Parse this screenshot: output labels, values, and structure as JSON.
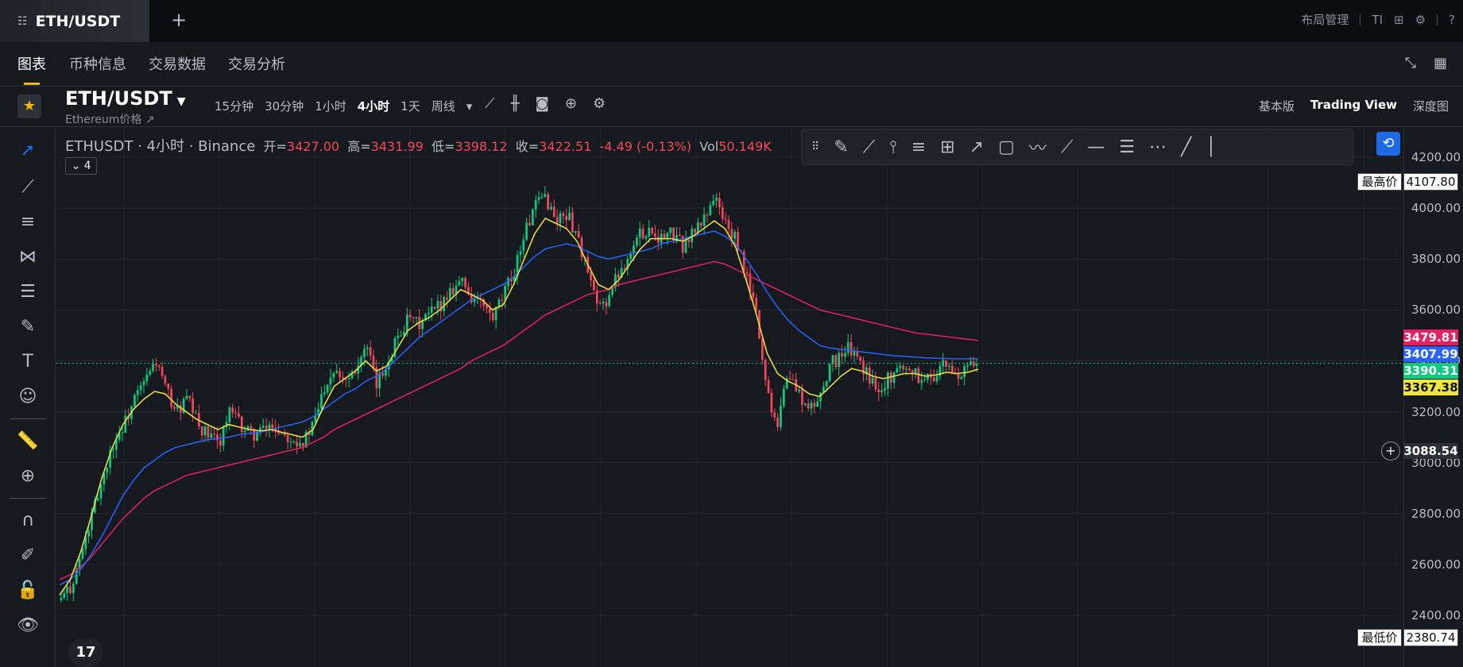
{
  "tab": {
    "icon": "list-icon",
    "title": "ETH/USDT"
  },
  "top_right": {
    "layout_label": "布局管理"
  },
  "subtabs": [
    "图表",
    "币种信息",
    "交易数据",
    "交易分析"
  ],
  "symbol": {
    "name": "ETH/USDT",
    "link": "Ethereum价格 ↗"
  },
  "intervals": [
    "15分钟",
    "30分钟",
    "1小时",
    "4小时",
    "1天",
    "周线"
  ],
  "active_interval": "4小时",
  "views": [
    "基本版",
    "Trading View",
    "深度图"
  ],
  "active_view": "Trading View",
  "legend": {
    "title": "ETHUSDT · 4小时 · Binance",
    "open_label": "开=",
    "open": "3427.00",
    "high_label": "高=",
    "high": "3431.99",
    "low_label": "低=",
    "low": "3398.12",
    "close_label": "收=",
    "close": "3422.51",
    "change": "-4.49 (-0.13%)",
    "vol_label": "Vol",
    "vol": "50.149K"
  },
  "indicator_toggle": "⌄ 4",
  "price_tags": {
    "ma_red": "3479.81",
    "ma_blue": "3407.99",
    "last": "3390.31",
    "ma_yellow": "3367.38",
    "crosshair": "3088.54"
  },
  "highest": {
    "label": "最高价",
    "value": "4107.80"
  },
  "lowest": {
    "label": "最低价",
    "value": "2380.74"
  },
  "colors": {
    "up": "#0ecb81",
    "down": "#f6465d",
    "ma_yellow": "#f0e442",
    "ma_blue": "#2962ff",
    "ma_red": "#e91e63",
    "accent": "#f0b90b"
  },
  "chart_data": {
    "type": "candlestick",
    "ylim": [
      2380,
      4250
    ],
    "y_ticks": [
      "4200.00",
      "4000.00",
      "3800.00",
      "3600.00",
      "3400.00",
      "3200.00",
      "3000.00",
      "2800.00",
      "2600.00",
      "2400.00"
    ],
    "close_path": [
      2460,
      2520,
      2650,
      2800,
      2950,
      3080,
      3150,
      3250,
      3320,
      3400,
      3280,
      3200,
      3250,
      3150,
      3100,
      3080,
      3200,
      3150,
      3110,
      3120,
      3150,
      3120,
      3100,
      3080,
      3150,
      3300,
      3380,
      3330,
      3380,
      3450,
      3300,
      3400,
      3500,
      3560,
      3540,
      3580,
      3620,
      3680,
      3720,
      3650,
      3620,
      3560,
      3650,
      3750,
      3900,
      4000,
      4050,
      3950,
      3980,
      3900,
      3750,
      3600,
      3650,
      3750,
      3820,
      3900,
      3920,
      3880,
      3900,
      3850,
      3900,
      3950,
      4050,
      3950,
      3880,
      3750,
      3600,
      3300,
      3150,
      3350,
      3280,
      3200,
      3250,
      3380,
      3420,
      3450,
      3380,
      3320,
      3300,
      3350,
      3380,
      3360,
      3320,
      3350,
      3380,
      3340,
      3360,
      3390
    ],
    "ma_yellow": [
      2480,
      2540,
      2650,
      2790,
      2940,
      3060,
      3150,
      3210,
      3250,
      3280,
      3270,
      3230,
      3200,
      3170,
      3150,
      3130,
      3150,
      3140,
      3130,
      3125,
      3130,
      3120,
      3110,
      3100,
      3130,
      3220,
      3300,
      3330,
      3360,
      3400,
      3360,
      3380,
      3450,
      3520,
      3550,
      3570,
      3600,
      3640,
      3680,
      3660,
      3640,
      3600,
      3620,
      3700,
      3800,
      3900,
      3960,
      3940,
      3920,
      3870,
      3780,
      3700,
      3680,
      3720,
      3780,
      3840,
      3880,
      3880,
      3880,
      3870,
      3890,
      3920,
      3950,
      3920,
      3850,
      3720,
      3580,
      3430,
      3350,
      3320,
      3300,
      3270,
      3260,
      3300,
      3340,
      3370,
      3360,
      3340,
      3330,
      3340,
      3350,
      3350,
      3340,
      3345,
      3355,
      3350,
      3355,
      3367
    ],
    "ma_blue": [
      2520,
      2540,
      2580,
      2640,
      2710,
      2790,
      2870,
      2930,
      2980,
      3010,
      3040,
      3060,
      3070,
      3080,
      3090,
      3095,
      3100,
      3110,
      3115,
      3120,
      3130,
      3140,
      3150,
      3160,
      3180,
      3210,
      3240,
      3270,
      3290,
      3320,
      3340,
      3370,
      3410,
      3450,
      3490,
      3520,
      3550,
      3580,
      3610,
      3640,
      3660,
      3680,
      3700,
      3730,
      3770,
      3810,
      3840,
      3850,
      3860,
      3850,
      3830,
      3810,
      3800,
      3810,
      3820,
      3830,
      3840,
      3860,
      3870,
      3880,
      3890,
      3900,
      3910,
      3890,
      3860,
      3800,
      3740,
      3670,
      3610,
      3560,
      3520,
      3490,
      3460,
      3450,
      3445,
      3440,
      3435,
      3430,
      3425,
      3420,
      3418,
      3415,
      3412,
      3410,
      3409,
      3408,
      3408,
      3408
    ],
    "ma_red": [
      2540,
      2560,
      2590,
      2630,
      2680,
      2730,
      2780,
      2820,
      2860,
      2890,
      2910,
      2930,
      2950,
      2960,
      2970,
      2980,
      2990,
      3000,
      3010,
      3020,
      3030,
      3040,
      3050,
      3060,
      3080,
      3100,
      3130,
      3150,
      3170,
      3190,
      3210,
      3230,
      3250,
      3270,
      3290,
      3310,
      3330,
      3350,
      3370,
      3400,
      3420,
      3440,
      3460,
      3490,
      3520,
      3550,
      3580,
      3600,
      3620,
      3640,
      3660,
      3670,
      3680,
      3700,
      3710,
      3720,
      3730,
      3740,
      3750,
      3760,
      3770,
      3780,
      3790,
      3780,
      3760,
      3740,
      3720,
      3700,
      3680,
      3660,
      3640,
      3620,
      3600,
      3590,
      3580,
      3570,
      3560,
      3550,
      3540,
      3530,
      3520,
      3510,
      3505,
      3500,
      3495,
      3490,
      3485,
      3480
    ]
  }
}
